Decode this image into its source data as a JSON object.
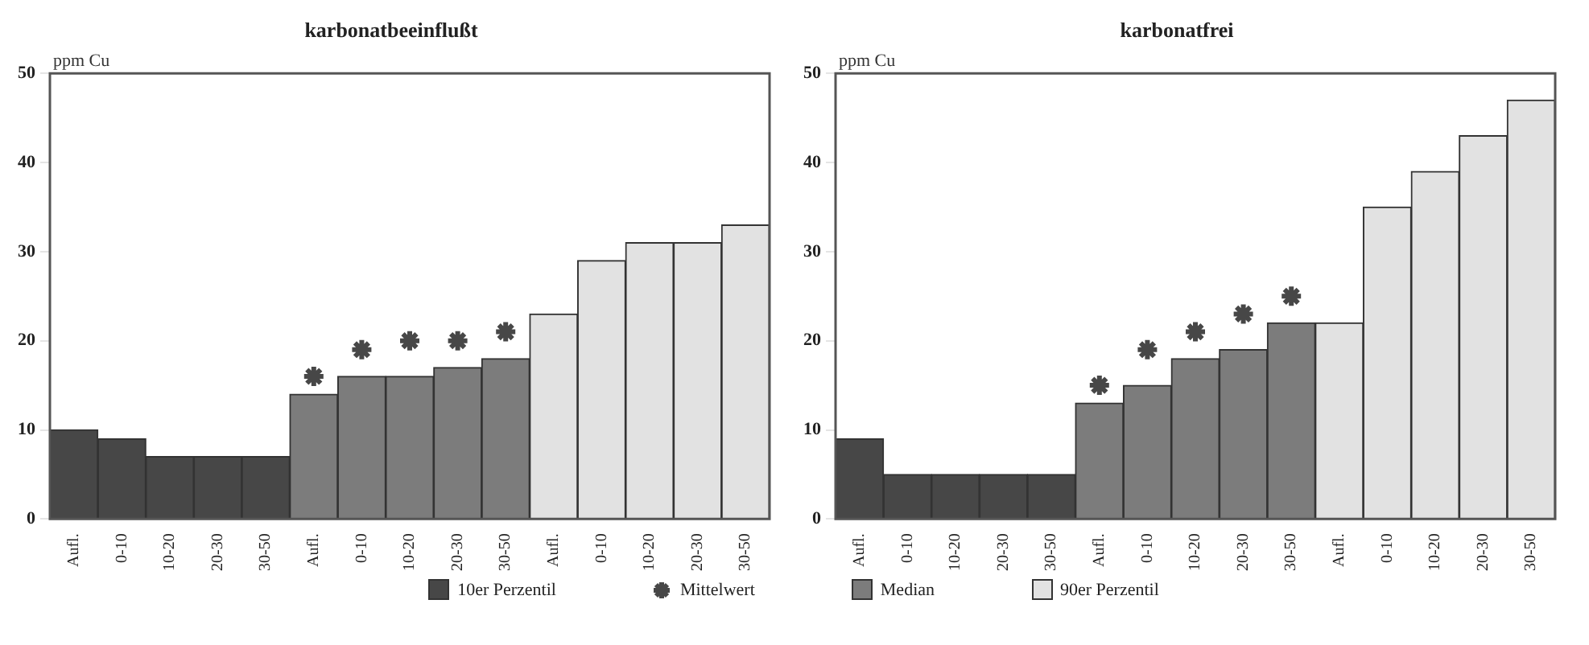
{
  "chart_data": [
    {
      "type": "bar",
      "title": "karbonatbeeinflußt",
      "ylabel": "ppm Cu",
      "categories": [
        "Aufl.",
        "0-10",
        "10-20",
        "20-30",
        "30-50",
        "Aufl.",
        "0-10",
        "10-20",
        "20-30",
        "30-50",
        "Aufl.",
        "0-10",
        "10-20",
        "20-30",
        "30-50"
      ],
      "ylim": [
        0,
        50
      ],
      "yticks": [
        0,
        10,
        20,
        30,
        40,
        50
      ],
      "grid": false,
      "legend": "bottom",
      "series": [
        {
          "name": "10er Perzentil",
          "color": "#474747",
          "values": [
            10,
            9,
            7,
            7,
            7,
            null,
            null,
            null,
            null,
            null,
            null,
            null,
            null,
            null,
            null
          ]
        },
        {
          "name": "Mittelwert",
          "type": "scatter",
          "marker": "cross",
          "color": "#474747",
          "values": [
            null,
            null,
            null,
            null,
            null,
            16,
            19,
            20,
            20,
            21,
            null,
            null,
            null,
            null,
            null
          ]
        },
        {
          "name": "Median",
          "color": "#7c7c7c",
          "values": [
            null,
            null,
            null,
            null,
            null,
            14,
            16,
            16,
            17,
            18,
            null,
            null,
            null,
            null,
            null
          ]
        },
        {
          "name": "90er Perzentil",
          "color": "#e2e2e2",
          "values": [
            null,
            null,
            null,
            null,
            null,
            null,
            null,
            null,
            null,
            null,
            23,
            29,
            31,
            31,
            33
          ]
        }
      ]
    },
    {
      "type": "bar",
      "title": "karbonatfrei",
      "ylabel": "ppm Cu",
      "categories": [
        "Aufl.",
        "0-10",
        "10-20",
        "20-30",
        "30-50",
        "Aufl.",
        "0-10",
        "10-20",
        "20-30",
        "30-50",
        "Aufl.",
        "0-10",
        "10-20",
        "20-30",
        "30-50"
      ],
      "ylim": [
        0,
        50
      ],
      "yticks": [
        0,
        10,
        20,
        30,
        40,
        50
      ],
      "grid": false,
      "series": [
        {
          "color": "#474747",
          "values": [
            9,
            5,
            5,
            5,
            5,
            null,
            null,
            null,
            null,
            null,
            null,
            null,
            null,
            null,
            null
          ]
        },
        {
          "type": "scatter",
          "marker": "cross",
          "color": "#474747",
          "values": [
            null,
            null,
            null,
            null,
            null,
            15,
            19,
            21,
            23,
            25,
            null,
            null,
            null,
            null,
            null
          ]
        },
        {
          "color": "#7c7c7c",
          "values": [
            null,
            null,
            null,
            null,
            null,
            13,
            15,
            18,
            19,
            22,
            null,
            null,
            null,
            null,
            null
          ]
        },
        {
          "color": "#e2e2e2",
          "values": [
            null,
            null,
            null,
            null,
            null,
            null,
            null,
            null,
            null,
            null,
            22,
            35,
            39,
            43,
            47
          ]
        }
      ]
    }
  ]
}
